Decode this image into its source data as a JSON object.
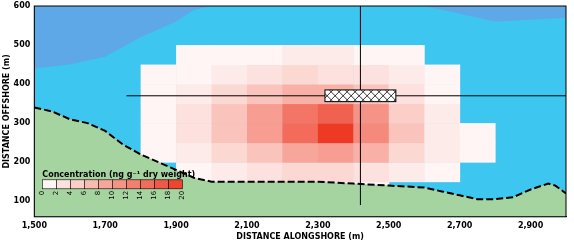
{
  "chart_data": {
    "type": "contour",
    "x_label": "DISTANCE ALONGSHORE (m)",
    "y_label": "DISTANCE OFFSHORE (m)",
    "xlim": [
      1500,
      3000
    ],
    "xticks": [
      1500,
      1700,
      1900,
      2100,
      2300,
      2500,
      2700,
      2900
    ],
    "ylim": [
      60,
      600
    ],
    "yticks": [
      100,
      200,
      300,
      400,
      500,
      600
    ],
    "grid": false,
    "cells": {
      "x": [
        1550,
        1650,
        1750,
        1850,
        1950,
        2050,
        2150,
        2250,
        2350,
        2450,
        2550,
        2650,
        2750,
        2850,
        2950
      ],
      "y": [
        25,
        75,
        125,
        175,
        225,
        275,
        325,
        375,
        425,
        475,
        525,
        575
      ],
      "values": [
        [
          0,
          0,
          0,
          0,
          0,
          0,
          0,
          0,
          0,
          0,
          0,
          0,
          0,
          0,
          0
        ],
        [
          0,
          0,
          0,
          0,
          0,
          0,
          0,
          0,
          0,
          0,
          0,
          0,
          0,
          0,
          0
        ],
        [
          0,
          0,
          0,
          0,
          0,
          0,
          1,
          1,
          1,
          1,
          0,
          0,
          0,
          0,
          0
        ],
        [
          0,
          0,
          0,
          0,
          1,
          2,
          3,
          4,
          4,
          3,
          2,
          1,
          0,
          0,
          0
        ],
        [
          0,
          0,
          0,
          1,
          2,
          4,
          6,
          9,
          10,
          8,
          4,
          2,
          1,
          0,
          0
        ],
        [
          0,
          0,
          0,
          1,
          3,
          6,
          10,
          15,
          20,
          12,
          6,
          2,
          1,
          0,
          0
        ],
        [
          0,
          0,
          0,
          1,
          3,
          6,
          10,
          14,
          16,
          11,
          5,
          2,
          0,
          0,
          0
        ],
        [
          0,
          0,
          0,
          1,
          2,
          4,
          6,
          8,
          8,
          6,
          3,
          1,
          0,
          0,
          0
        ],
        [
          0,
          0,
          0,
          1,
          1,
          2,
          3,
          4,
          3,
          3,
          2,
          1,
          0,
          0,
          0
        ],
        [
          0,
          0,
          0,
          0,
          1,
          1,
          1,
          2,
          2,
          1,
          1,
          0,
          0,
          0,
          0
        ],
        [
          0,
          0,
          0,
          0,
          0,
          0,
          0,
          0,
          0,
          0,
          0,
          0,
          0,
          0,
          0
        ],
        [
          0,
          0,
          0,
          0,
          0,
          0,
          0,
          0,
          0,
          0,
          0,
          0,
          0,
          0,
          0
        ]
      ]
    },
    "colorbar": {
      "label": "Concentration (ng g⁻¹ dry weight)",
      "range": [
        0,
        20
      ],
      "ticks": [
        0,
        2,
        4,
        6,
        8,
        10,
        12,
        14,
        16,
        18,
        20
      ]
    },
    "series": [
      {
        "type": "area_top",
        "color": "#5fa8e8",
        "x": [
          1500,
          1600,
          1700,
          1800,
          1900,
          1950,
          2000
        ],
        "y": [
          440,
          450,
          470,
          520,
          560,
          590,
          600
        ]
      },
      {
        "type": "area_top",
        "color": "#5fa8e8",
        "x": [
          2600,
          2700,
          2800,
          2900,
          3000
        ],
        "y": [
          600,
          580,
          560,
          565,
          570
        ]
      },
      {
        "type": "area",
        "color": "#a6d4a0",
        "line_style": "dashed",
        "x": [
          1500,
          1550,
          1600,
          1650,
          1700,
          1750,
          1800,
          1850,
          1900,
          1950,
          2000,
          2100,
          2200,
          2300,
          2400,
          2500,
          2600,
          2650,
          2700,
          2750,
          2800,
          2850,
          2900,
          2950,
          2970,
          3000
        ],
        "y": [
          340,
          330,
          310,
          300,
          280,
          245,
          220,
          200,
          180,
          160,
          150,
          150,
          150,
          150,
          145,
          140,
          135,
          125,
          115,
          105,
          105,
          110,
          130,
          145,
          140,
          120
        ]
      },
      {
        "type": "line",
        "color": "#000000",
        "x": [
          2420,
          2420
        ],
        "y": [
          90,
          600
        ]
      },
      {
        "type": "line",
        "color": "#000000",
        "x": [
          1760,
          3000
        ],
        "y": [
          370,
          370
        ]
      }
    ],
    "boxes": [
      {
        "x": [
          2320,
          2520
        ],
        "y": [
          355,
          385
        ],
        "marker": "hatched"
      }
    ]
  }
}
